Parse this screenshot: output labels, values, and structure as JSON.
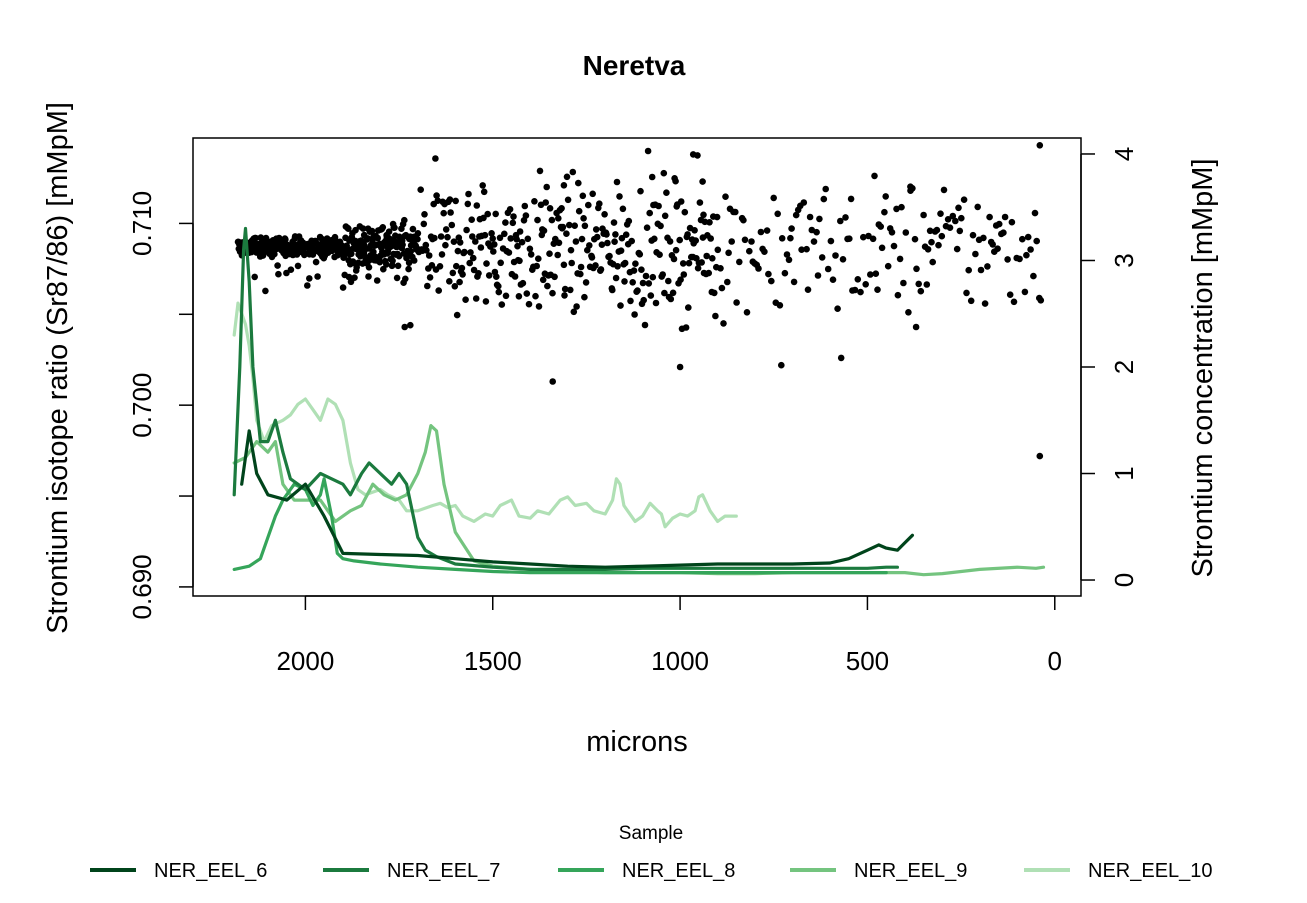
{
  "chart_data": {
    "type": "line+scatter",
    "title": "Neretva",
    "xlabel": "microns",
    "ylabel_left": "Strontium isotope ratio (Sr87/86) [mMpM]",
    "ylabel_right": "Strontium concentration [mMpM]",
    "xlim": [
      2300,
      -70
    ],
    "ylim_left": [
      0.6895,
      0.7147
    ],
    "ylim_right": [
      -0.15,
      4.15
    ],
    "x_ticks": [
      2000,
      1500,
      1000,
      500,
      0
    ],
    "x_tick_labels": [
      "2000",
      "1500",
      "1000",
      "500",
      "0"
    ],
    "y_left_ticks": [
      0.69,
      0.695,
      0.7,
      0.705,
      0.71
    ],
    "y_left_tick_labels": [
      "0.690",
      "",
      "0.700",
      "",
      "0.710"
    ],
    "y_right_ticks": [
      0,
      1,
      2,
      3,
      4
    ],
    "y_right_tick_labels": [
      "0",
      "1",
      "2",
      "3",
      "4"
    ],
    "legend": {
      "title": "Sample",
      "position": "bottom",
      "entries": [
        {
          "label": "NER_EEL_6",
          "color": "#00441b"
        },
        {
          "label": "NER_EEL_7",
          "color": "#1b7a3e"
        },
        {
          "label": "NER_EEL_8",
          "color": "#35a55a"
        },
        {
          "label": "NER_EEL_9",
          "color": "#74c47f"
        },
        {
          "label": "NER_EEL_10",
          "color": "#b0e0b5"
        }
      ]
    },
    "scatter": {
      "name": "Sr87/86 ratio",
      "axis": "left",
      "color": "#000000",
      "x_range": [
        2180,
        30
      ],
      "center": 0.7087,
      "outliers": [
        {
          "x": 965,
          "y": 0.7138
        },
        {
          "x": 40,
          "y": 0.7143
        },
        {
          "x": 40,
          "y": 0.6972
        },
        {
          "x": 1340,
          "y": 0.7013
        },
        {
          "x": 1000,
          "y": 0.7021
        },
        {
          "x": 730,
          "y": 0.7022
        },
        {
          "x": 570,
          "y": 0.7026
        },
        {
          "x": 1735,
          "y": 0.7043
        },
        {
          "x": 1720,
          "y": 0.7044
        },
        {
          "x": 370,
          "y": 0.7043
        },
        {
          "x": 1310,
          "y": 0.7121
        },
        {
          "x": 940,
          "y": 0.7123
        },
        {
          "x": 385,
          "y": 0.7118
        }
      ]
    },
    "series": [
      {
        "name": "NER_EEL_6",
        "axis": "right",
        "color": "#00441b",
        "x": [
          2170,
          2150,
          2130,
          2100,
          2050,
          2000,
          1950,
          1900,
          1800,
          1700,
          1600,
          1500,
          1400,
          1300,
          1200,
          1100,
          1000,
          900,
          800,
          700,
          600,
          550,
          500,
          470,
          450,
          420,
          400,
          380
        ],
        "values": [
          0.9,
          1.4,
          1.0,
          0.8,
          0.75,
          0.9,
          0.6,
          0.25,
          0.24,
          0.23,
          0.2,
          0.17,
          0.15,
          0.13,
          0.12,
          0.13,
          0.14,
          0.15,
          0.15,
          0.15,
          0.16,
          0.2,
          0.28,
          0.33,
          0.3,
          0.28,
          0.35,
          0.42
        ]
      },
      {
        "name": "NER_EEL_7",
        "axis": "right",
        "color": "#1b7a3e",
        "x": [
          2190,
          2175,
          2165,
          2160,
          2150,
          2140,
          2120,
          2100,
          2080,
          2060,
          2040,
          2000,
          1960,
          1930,
          1900,
          1880,
          1850,
          1830,
          1800,
          1770,
          1750,
          1730,
          1700,
          1680,
          1650,
          1600,
          1500,
          1400,
          1300,
          1200,
          1100,
          1000,
          900,
          800,
          700,
          600,
          500,
          450,
          420
        ],
        "values": [
          0.8,
          2.0,
          3.1,
          3.3,
          2.8,
          2.0,
          1.3,
          1.3,
          1.5,
          1.2,
          0.95,
          0.85,
          1.0,
          0.95,
          0.9,
          0.8,
          1.0,
          1.1,
          1.0,
          0.9,
          1.0,
          0.9,
          0.4,
          0.28,
          0.22,
          0.15,
          0.12,
          0.1,
          0.1,
          0.1,
          0.11,
          0.11,
          0.11,
          0.11,
          0.11,
          0.11,
          0.11,
          0.12,
          0.12
        ]
      },
      {
        "name": "NER_EEL_8",
        "axis": "right",
        "color": "#35a55a",
        "x": [
          2190,
          2150,
          2120,
          2100,
          2080,
          2060,
          2030,
          2000,
          1980,
          1960,
          1950,
          1930,
          1915,
          1900,
          1870,
          1800,
          1700,
          1600,
          1500,
          1400,
          1300,
          1200,
          1100,
          1000,
          900,
          800,
          700,
          600,
          500,
          450
        ],
        "values": [
          0.1,
          0.13,
          0.2,
          0.4,
          0.6,
          0.75,
          0.9,
          0.85,
          0.7,
          0.8,
          0.95,
          0.6,
          0.25,
          0.2,
          0.18,
          0.15,
          0.12,
          0.1,
          0.08,
          0.07,
          0.07,
          0.07,
          0.07,
          0.07,
          0.07,
          0.07,
          0.07,
          0.07,
          0.07,
          0.07
        ]
      },
      {
        "name": "NER_EEL_9",
        "axis": "right",
        "color": "#74c47f",
        "x": [
          2190,
          2160,
          2130,
          2100,
          2080,
          2060,
          2030,
          2000,
          1960,
          1920,
          1880,
          1850,
          1820,
          1790,
          1760,
          1730,
          1700,
          1680,
          1665,
          1650,
          1630,
          1600,
          1550,
          1500,
          1400,
          1300,
          1200,
          1100,
          1000,
          900,
          800,
          700,
          600,
          500,
          400,
          350,
          300,
          200,
          100,
          50,
          30
        ],
        "values": [
          1.1,
          1.15,
          1.3,
          1.2,
          1.3,
          0.9,
          0.75,
          0.75,
          0.75,
          0.55,
          0.65,
          0.7,
          0.9,
          0.8,
          0.75,
          0.8,
          1.0,
          1.2,
          1.45,
          1.4,
          0.9,
          0.45,
          0.18,
          0.13,
          0.1,
          0.08,
          0.07,
          0.07,
          0.07,
          0.06,
          0.06,
          0.07,
          0.07,
          0.07,
          0.07,
          0.05,
          0.06,
          0.1,
          0.12,
          0.11,
          0.12
        ]
      },
      {
        "name": "NER_EEL_10",
        "axis": "right",
        "color": "#b0e0b5",
        "x": [
          2190,
          2180,
          2170,
          2160,
          2150,
          2140,
          2130,
          2110,
          2090,
          2060,
          2040,
          2020,
          2000,
          1980,
          1960,
          1940,
          1920,
          1900,
          1880,
          1860,
          1840,
          1800,
          1780,
          1750,
          1730,
          1700,
          1660,
          1640,
          1620,
          1600,
          1580,
          1550,
          1520,
          1500,
          1480,
          1450,
          1430,
          1400,
          1380,
          1350,
          1320,
          1300,
          1280,
          1250,
          1230,
          1200,
          1180,
          1170,
          1160,
          1150,
          1140,
          1120,
          1100,
          1080,
          1060,
          1050,
          1040,
          1020,
          1000,
          980,
          960,
          950,
          940,
          920,
          900,
          880,
          860,
          850
        ],
        "values": [
          2.3,
          2.6,
          2.5,
          2.4,
          2.2,
          1.9,
          1.5,
          1.3,
          1.45,
          1.5,
          1.55,
          1.65,
          1.7,
          1.6,
          1.5,
          1.7,
          1.65,
          1.5,
          1.1,
          0.85,
          0.8,
          0.85,
          0.8,
          0.75,
          0.65,
          0.65,
          0.7,
          0.72,
          0.68,
          0.7,
          0.6,
          0.55,
          0.62,
          0.6,
          0.7,
          0.75,
          0.6,
          0.58,
          0.65,
          0.62,
          0.75,
          0.78,
          0.7,
          0.72,
          0.65,
          0.62,
          0.75,
          0.95,
          0.9,
          0.7,
          0.65,
          0.55,
          0.6,
          0.72,
          0.65,
          0.62,
          0.5,
          0.58,
          0.62,
          0.6,
          0.65,
          0.78,
          0.8,
          0.65,
          0.55,
          0.6,
          0.6,
          0.6
        ]
      }
    ]
  }
}
